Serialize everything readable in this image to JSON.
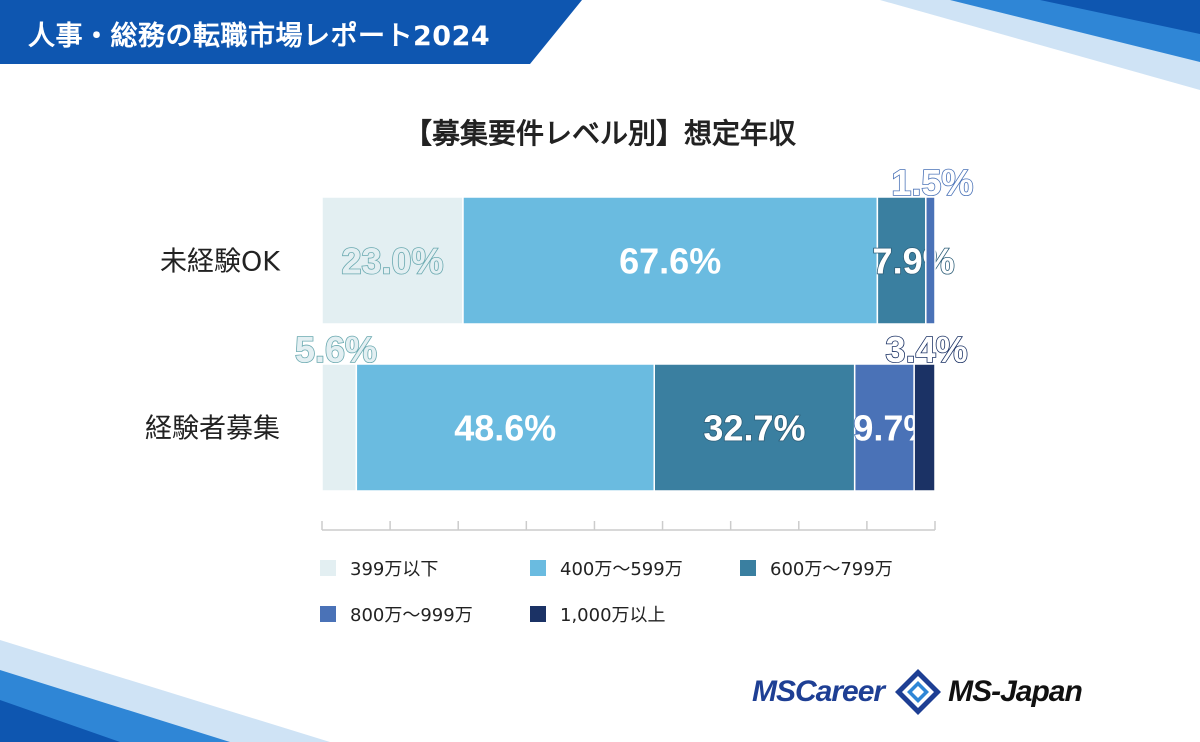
{
  "header": {
    "title": "人事・総務の転職市場レポート2024"
  },
  "colors": {
    "header_blue": "#0e56b0",
    "accent_blue": "#1a73c9",
    "categories": [
      "#e3eff2",
      "#6abbe0",
      "#3a7fa0",
      "#4a72b7",
      "#1b3265"
    ]
  },
  "chart_data": {
    "type": "bar",
    "orientation": "horizontal",
    "stacked": true,
    "title": "【募集要件レベル別】想定年収",
    "categories": [
      "未経験OK",
      "経験者募集"
    ],
    "series": [
      {
        "name": "399万以下",
        "values": [
          23.0,
          5.6
        ],
        "labels": [
          "23.0%",
          "5.6%"
        ]
      },
      {
        "name": "400万～599万",
        "values": [
          67.6,
          48.6
        ],
        "labels": [
          "67.6%",
          "48.6%"
        ]
      },
      {
        "name": "600万～799万",
        "values": [
          7.9,
          32.7
        ],
        "labels": [
          "7.9%",
          "32.7%"
        ]
      },
      {
        "name": "800万～999万",
        "values": [
          1.5,
          9.7
        ],
        "labels": [
          "1.5%",
          "9.7%"
        ]
      },
      {
        "name": "1,000万以上",
        "values": [
          0.0,
          3.4
        ],
        "labels": [
          "",
          "3.4%"
        ]
      }
    ],
    "xlim": [
      0,
      100
    ],
    "legend": "bottom",
    "grid": false
  },
  "logo": {
    "ms": "MS",
    "career": "Career",
    "japan": "MS-Japan"
  }
}
